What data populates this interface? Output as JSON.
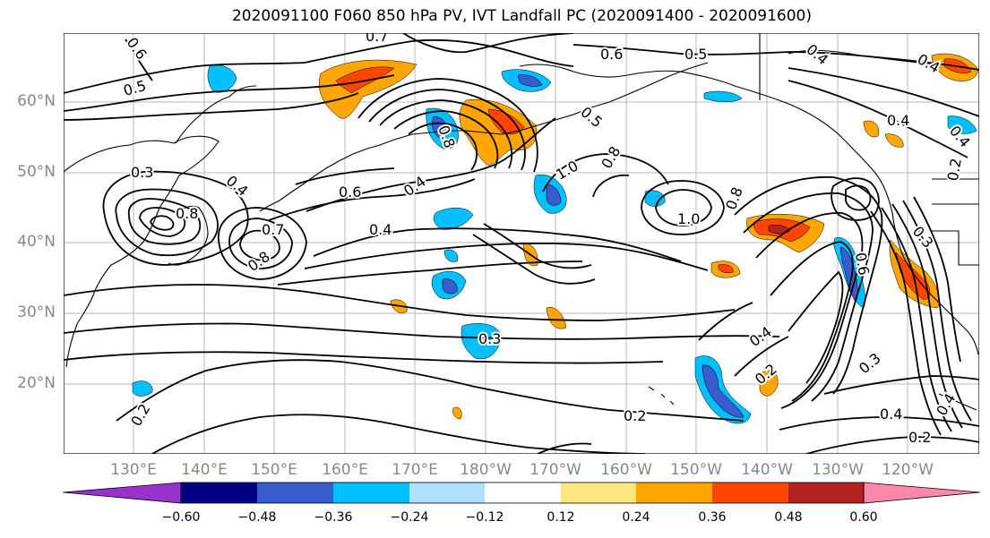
{
  "title": "2020091100 F060 850 hPa PV, IVT Landfall PC (2020091400 - 2020091600)",
  "lat_labels": [
    "60°N",
    "50°N",
    "40°N",
    "30°N",
    "20°N"
  ],
  "lon_labels": [
    "130°E",
    "140°E",
    "150°E",
    "160°E",
    "170°E",
    "180°W",
    "170°W",
    "160°W",
    "150°W",
    "140°W",
    "130°W",
    "120°W"
  ],
  "contour_labels": [
    "0.6",
    "0.5",
    "0.7",
    "0.6",
    "0.5",
    "0.5",
    "0.4",
    "0.4",
    "0.3",
    "0.8",
    "0.4",
    "0.6",
    "0.4",
    "0.7",
    "0.8",
    "0.4",
    "0.8",
    "1.0",
    "0.8",
    "1.0",
    "0.8",
    "0.6",
    "0.4",
    "0.4",
    "0.3",
    "0.2",
    "0.3",
    "0.2",
    "0.4",
    "0.2",
    "0.2",
    "0.4",
    "0.2",
    "0.4",
    "0.3"
  ],
  "colorbar": {
    "ticks": [
      "−0.60",
      "−0.48",
      "−0.36",
      "−0.24",
      "−0.12",
      "0.12",
      "0.24",
      "0.36",
      "0.48",
      "0.60"
    ],
    "colors": [
      "#9932cc",
      "#000080",
      "#3a5bcd",
      "#00bfff",
      "#b0e0ff",
      "#ffffff",
      "#ffe680",
      "#ffa500",
      "#ff4500",
      "#b22222",
      "#ff88aa",
      "#ff88aa"
    ]
  },
  "shading_colors": {
    "light_blue": "#b0e0ff",
    "blue": "#00bfff",
    "royal_blue": "#3a5bcd",
    "navy": "#000080",
    "light_yellow": "#ffe680",
    "orange": "#ffa500",
    "red_orange": "#ff4500",
    "dark_red": "#b22222"
  }
}
